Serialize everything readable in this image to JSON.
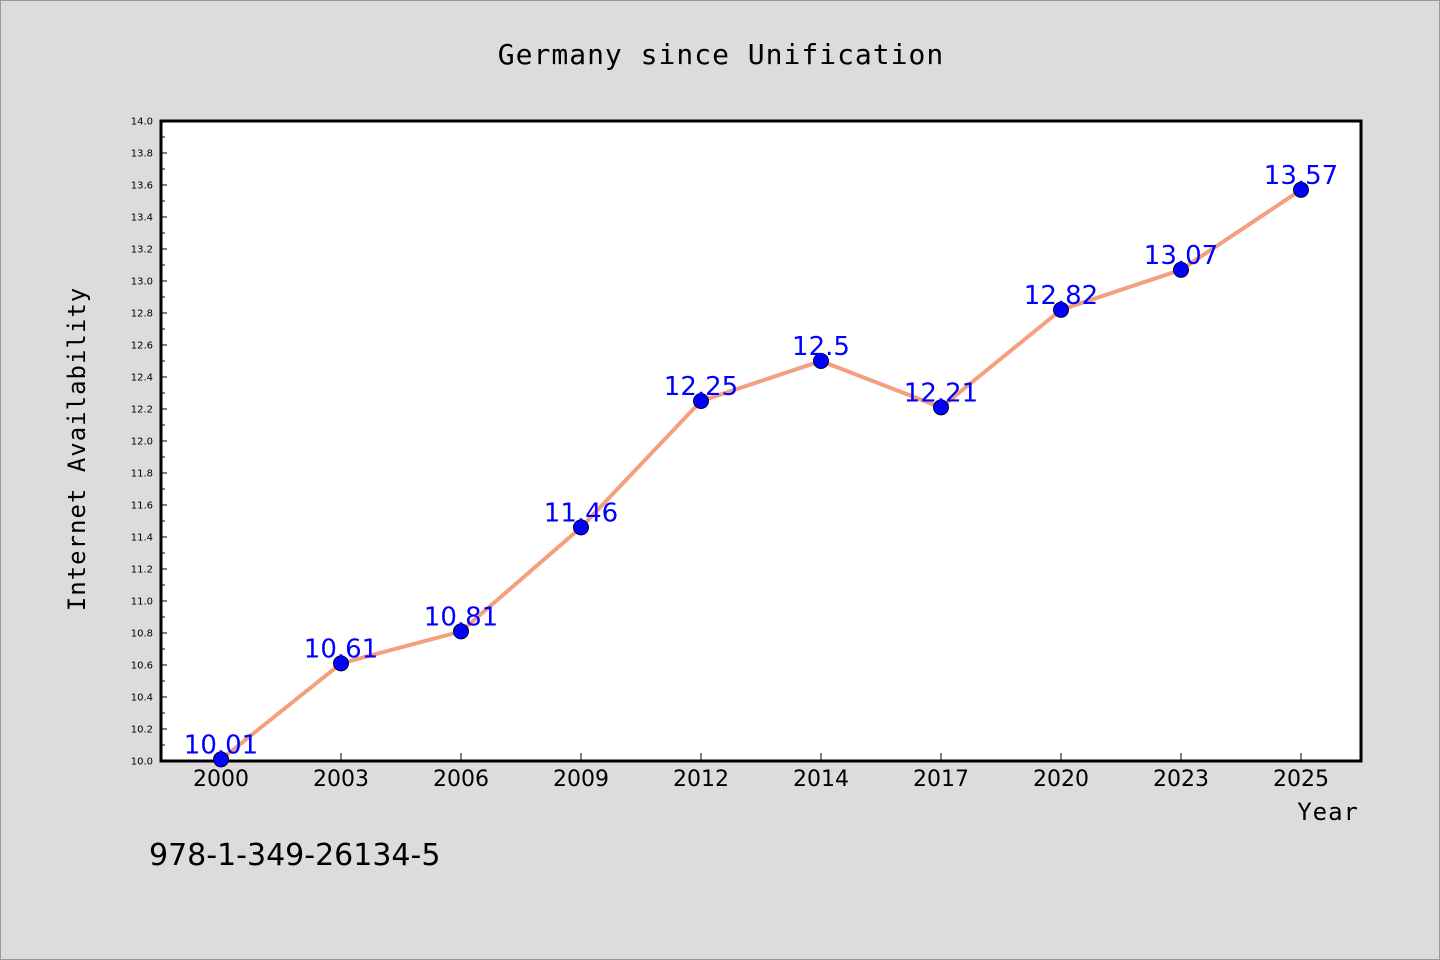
{
  "chart_data": {
    "type": "line",
    "title": "Germany since Unification",
    "xlabel": "Year",
    "ylabel": "Internet Availability",
    "categories": [
      "2000",
      "2003",
      "2006",
      "2009",
      "2012",
      "2014",
      "2017",
      "2020",
      "2023",
      "2025"
    ],
    "series": [
      {
        "values": [
          10.01,
          10.61,
          10.81,
          11.46,
          12.25,
          12.5,
          12.21,
          12.82,
          13.07,
          13.57
        ],
        "labels": [
          "10.01",
          "10.61",
          "10.81",
          "11.46",
          "12.25",
          "12.5",
          "12.21",
          "12.82",
          "13.07",
          "13.57"
        ],
        "line_color": "#f4a07e",
        "marker_color": "#0000ff"
      }
    ],
    "ylim": [
      10.0,
      14.0
    ],
    "yticks": [
      "10.0",
      "10.2",
      "10.4",
      "10.6",
      "10.8",
      "11.0",
      "11.2",
      "11.4",
      "11.6",
      "11.8",
      "12.0",
      "12.2",
      "12.4",
      "12.6",
      "12.8",
      "13.0",
      "13.2",
      "13.4",
      "13.6",
      "13.8",
      "14.0"
    ],
    "grid": false,
    "legend": "none"
  },
  "footer_text": "978-1-349-26134-5",
  "colors": {
    "background": "#dcdcdc",
    "plot_background": "#ffffff",
    "data_label": "#0000ff"
  }
}
